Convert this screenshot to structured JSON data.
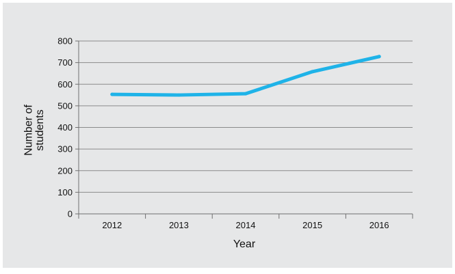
{
  "colors": {
    "background": "#e6e7e8",
    "line": "#1fb3e8",
    "grid": "#8a8a8a",
    "axis": "#6f6f6f",
    "text": "#111111"
  },
  "chart_data": {
    "type": "line",
    "title": "",
    "xlabel": "Year",
    "ylabel": "Number of students",
    "categories": [
      "2012",
      "2013",
      "2014",
      "2015",
      "2016"
    ],
    "series": [
      {
        "values": [
          553,
          550,
          556,
          658,
          728
        ]
      }
    ],
    "ylim": [
      0,
      800
    ],
    "yticks": [
      "0",
      "100",
      "200",
      "300",
      "400",
      "500",
      "600",
      "700",
      "800"
    ],
    "grid": "horizontal",
    "legend": "none"
  }
}
